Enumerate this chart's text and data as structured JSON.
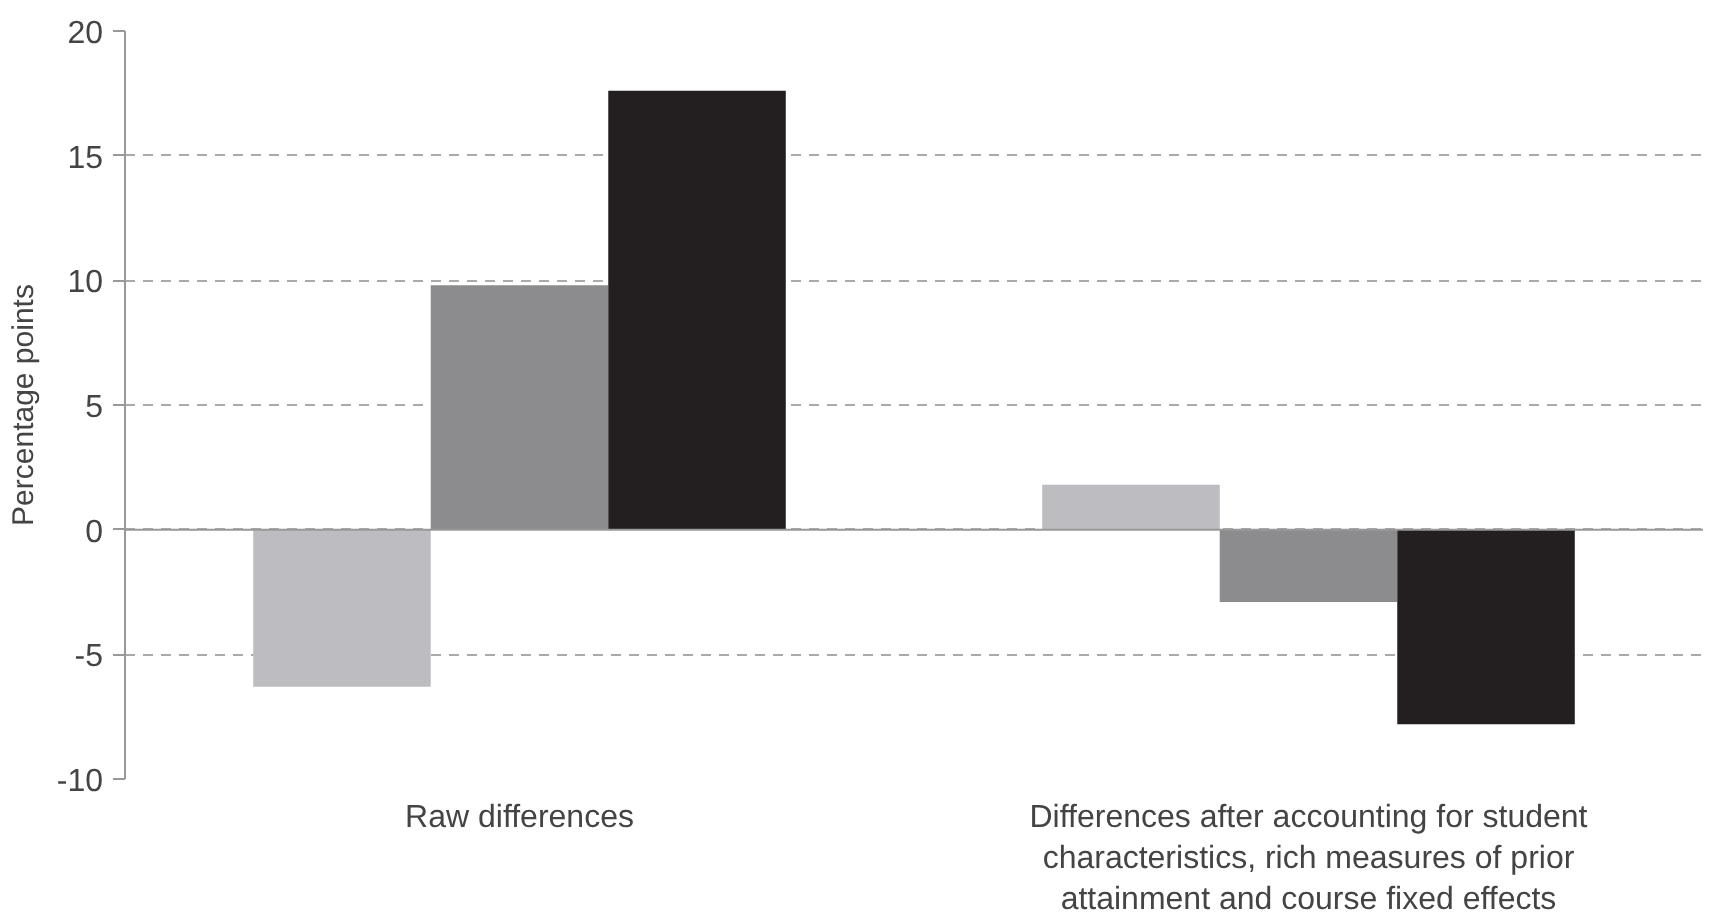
{
  "chart_data": {
    "type": "bar",
    "ylabel": "Percentage points",
    "categories": [
      "Raw differences",
      "Differences after accounting for student characteristics, rich measures of prior attainment and course fixed effects"
    ],
    "series": [
      {
        "color": "#bdbdc1",
        "values": [
          -6.3,
          1.8
        ]
      },
      {
        "color": "#8c8c8e",
        "values": [
          9.8,
          -2.9
        ]
      },
      {
        "color": "#231f20",
        "values": [
          17.6,
          -7.8
        ]
      }
    ],
    "ylim": [
      -10,
      20
    ],
    "yticks": [
      -10,
      -5,
      0,
      5,
      10,
      15,
      20
    ],
    "grid": "y"
  }
}
